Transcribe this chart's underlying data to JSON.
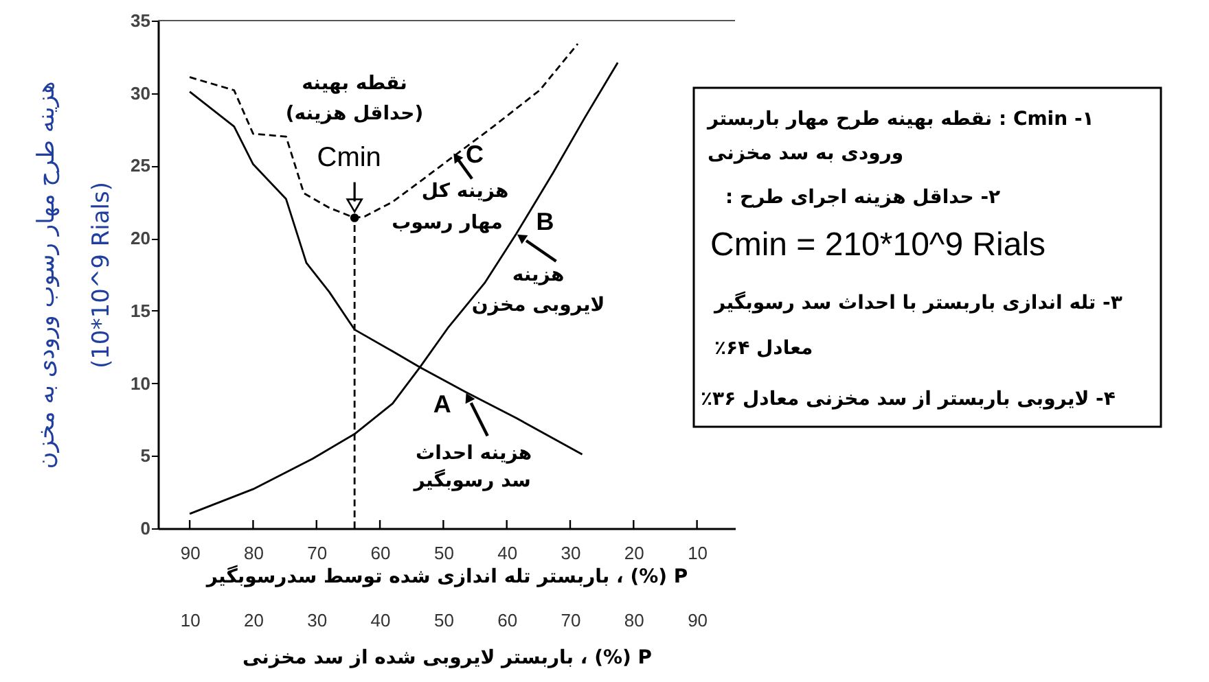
{
  "chart_data": {
    "type": "line",
    "xlabel": "P (%) ، باربستر تله اندازی شده توسط سدرسوبگیر",
    "x2label": "P (%) ، باربستر لایروبی شده از سد مخزنی",
    "ylabel": "هزینه طرح مهار رسوب ورودی به مخزن\n(10*10^9 Rials)",
    "xlim": [
      95,
      4
    ],
    "xticks": [
      90,
      80,
      70,
      60,
      50,
      40,
      30,
      20,
      10
    ],
    "x2lim": [
      5,
      96
    ],
    "x2ticks": [
      10,
      20,
      30,
      40,
      50,
      60,
      70,
      80,
      90
    ],
    "ylim": [
      0,
      35
    ],
    "yticks": [
      0,
      5,
      10,
      15,
      20,
      25,
      30,
      35
    ],
    "series": [
      {
        "color": "#000000",
        "x": [
          90,
          83,
          80,
          74.8,
          71.6,
          68,
          64,
          58,
          53.7,
          46.5,
          38.5,
          28.1
        ],
        "values": [
          30.1,
          27.7,
          25.1,
          22.7,
          18.3,
          16.3,
          13.7,
          12.2,
          11.1,
          9.4,
          7.6,
          5.1
        ]
      },
      {
        "color": "#000000",
        "x": [
          90,
          80,
          70.6,
          64,
          58,
          53.7,
          49.3,
          43.5,
          38.5,
          32.7,
          27.7,
          22.5
        ],
        "values": [
          1.0,
          2.7,
          4.8,
          6.5,
          8.6,
          11.1,
          13.8,
          16.9,
          20.3,
          24.5,
          28.3,
          32.1
        ]
      },
      {
        "color": "#000000",
        "line_style": "dashed",
        "x": [
          90,
          83,
          80,
          74.8,
          72,
          68,
          64,
          62.4,
          58,
          53.7,
          47.9,
          42.1,
          34.8,
          28.8
        ],
        "values": [
          31.1,
          30.2,
          27.2,
          27.0,
          23.1,
          22.1,
          21.4,
          21.5,
          22.5,
          23.9,
          25.8,
          27.7,
          30.2,
          33.4
        ]
      },
      {
        "type": "line",
        "color": "#000000",
        "line_style": "dashed",
        "x": [
          64,
          64
        ],
        "values": [
          0,
          21.4
        ]
      },
      {
        "type": "scatter",
        "color": "#000000",
        "marker": "circle",
        "x": [
          64
        ],
        "values": [
          21.4
        ]
      }
    ],
    "annotations": [
      "نقطه بهینه\n(حداقل هزینه)",
      {
        "text": "Cmin",
        "x": 64,
        "y": 21.4
      },
      {
        "text": "C",
        "x": 48.3,
        "y": 25.8
      },
      {
        "text": "هزینه کل\nمهار رسوب",
        "x": 48.3,
        "y": 25.8
      },
      {
        "text": "B",
        "x": 38.5,
        "y": 20.3
      },
      {
        "text": "هزینه\nلایروبی مخزن",
        "x": 38.5,
        "y": 20.3
      },
      {
        "text": "A",
        "x": 46.5,
        "y": 9.4
      },
      {
        "text": "هزینه احداث\nسد رسوبگیر",
        "x": 46.5,
        "y": 9.4
      },
      "۱- Cmin : نقطه بهینه طرح مهار باربستر\nورودی به سد مخزنی",
      "۲- حداقل هزینه اجرای طرح :",
      "Cmin = 210*10^9 Rials",
      "۳- تله اندازی باربستر با احداث سد رسوبگیر\nمعادل ۶۴٪",
      "۴- لایروبی باربستر از سد مخزنی معادل ۳۶٪"
    ]
  }
}
